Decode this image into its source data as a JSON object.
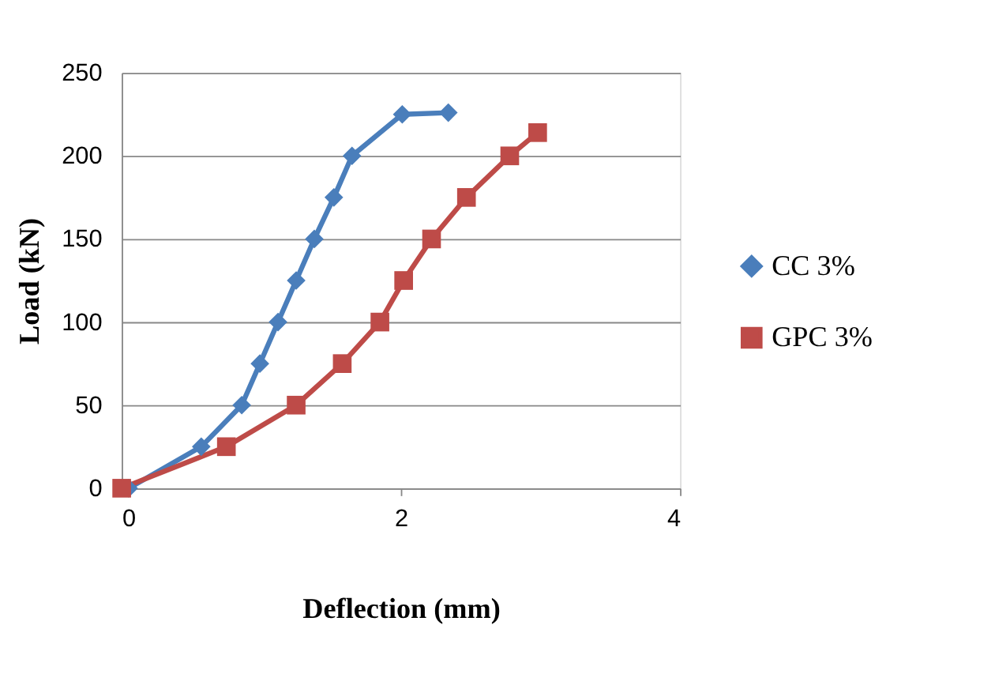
{
  "chart_data": {
    "type": "line",
    "xlabel": "Deflection (mm)",
    "ylabel": "Load (kN)",
    "xlim": [
      0,
      4
    ],
    "xticks": [
      0,
      2,
      4
    ],
    "ylim": [
      0,
      250
    ],
    "yticks": [
      0,
      50,
      100,
      150,
      200,
      250
    ],
    "grid": "y",
    "legend": "right",
    "line_style": "solid",
    "series": [
      {
        "name": "CC 3%",
        "color": "#4a7ebb",
        "marker": "diamond",
        "x": [
          0.05,
          0.57,
          0.86,
          0.99,
          1.12,
          1.25,
          1.38,
          1.52,
          1.65,
          2.01,
          2.34
        ],
        "values": [
          0,
          25,
          50,
          75,
          100,
          125,
          150,
          175,
          200,
          225,
          226
        ]
      },
      {
        "name": "GPC 3%",
        "color": "#be4b48",
        "marker": "square",
        "x": [
          0,
          0.75,
          1.25,
          1.58,
          1.85,
          2.02,
          2.22,
          2.47,
          2.78,
          2.98
        ],
        "values": [
          0,
          25,
          50,
          75,
          100,
          125,
          150,
          175,
          200,
          214
        ]
      }
    ]
  }
}
